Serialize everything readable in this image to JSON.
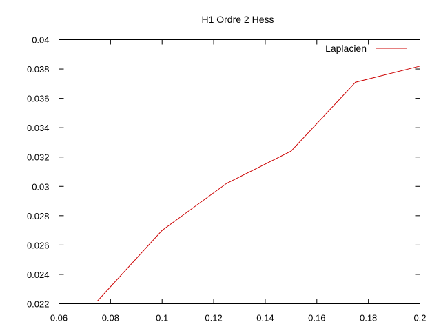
{
  "chart_data": {
    "type": "line",
    "title": "H1 Ordre 2 Hess",
    "xlabel": "",
    "ylabel": "",
    "xlim": [
      0.06,
      0.2
    ],
    "ylim": [
      0.022,
      0.04
    ],
    "x_ticks": [
      0.06,
      0.08,
      0.1,
      0.12,
      0.14,
      0.16,
      0.18,
      0.2
    ],
    "x_tick_labels": [
      "0.06",
      "0.08",
      "0.1",
      "0.12",
      "0.14",
      "0.16",
      "0.18",
      "0.2"
    ],
    "y_ticks": [
      0.022,
      0.024,
      0.026,
      0.028,
      0.03,
      0.032,
      0.034,
      0.036,
      0.038,
      0.04
    ],
    "y_tick_labels": [
      "0.022",
      "0.024",
      "0.026",
      "0.028",
      "0.03",
      "0.032",
      "0.034",
      "0.036",
      "0.038",
      "0.04"
    ],
    "grid": false,
    "legend_position": "top-right",
    "series": [
      {
        "name": "Laplacien",
        "color": "#cc0000",
        "x": [
          0.075,
          0.1,
          0.125,
          0.15,
          0.175,
          0.2
        ],
        "y": [
          0.0222,
          0.027,
          0.0302,
          0.0324,
          0.0371,
          0.0382
        ]
      }
    ]
  }
}
